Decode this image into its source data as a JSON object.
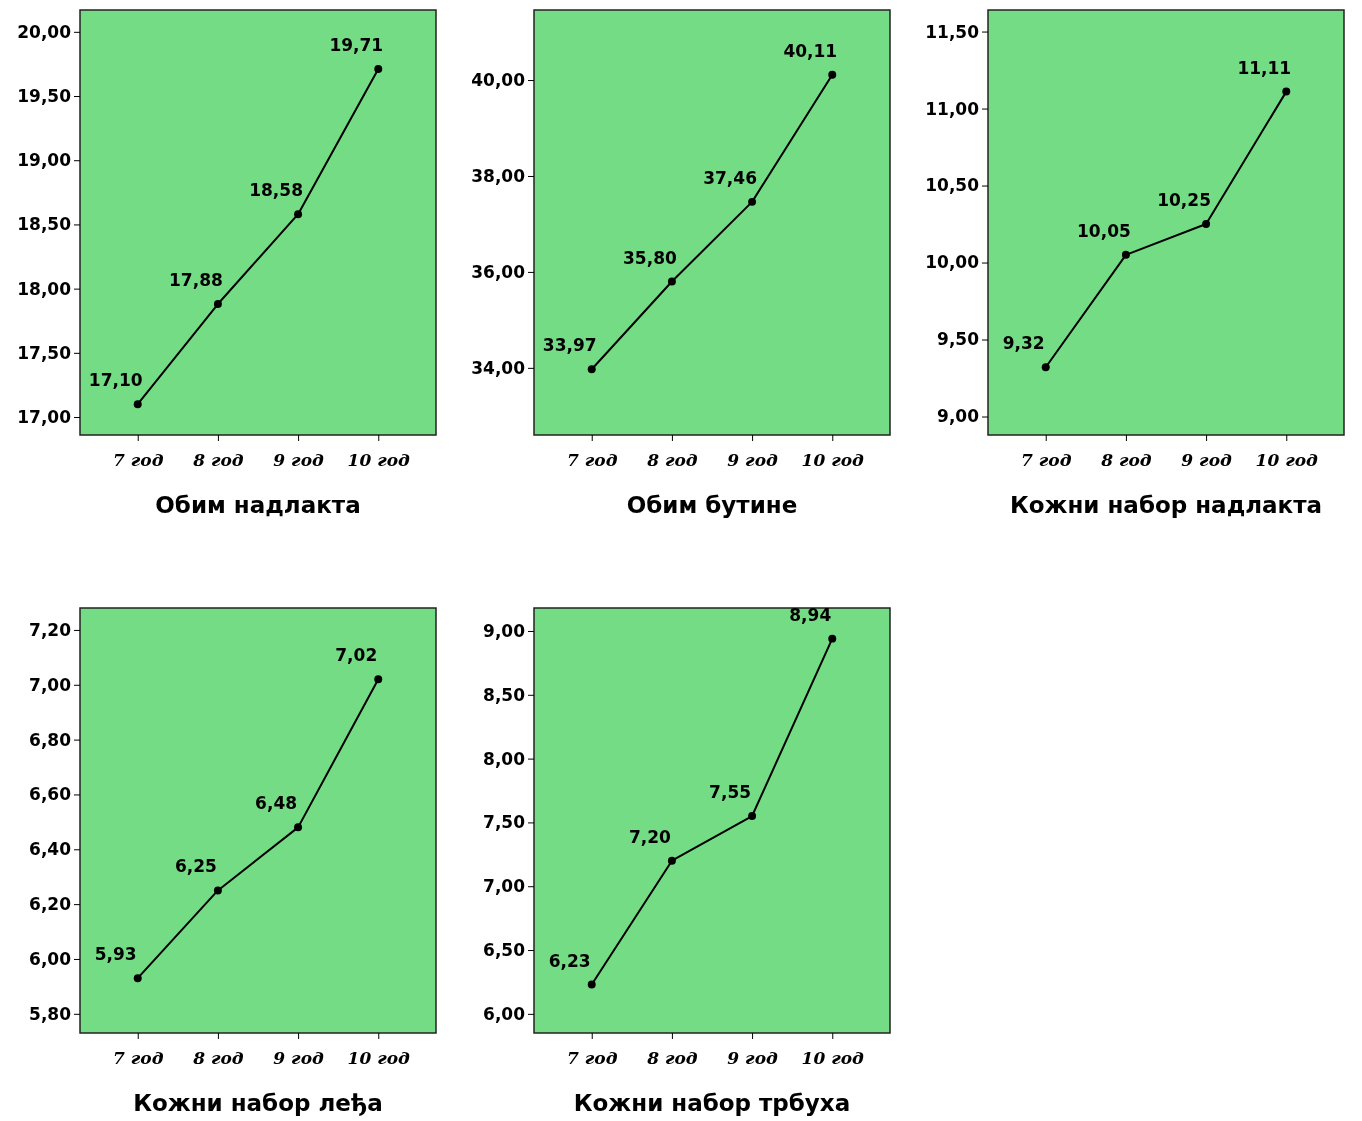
{
  "chart_data": [
    {
      "type": "line",
      "title": "Обим надлакта",
      "categories": [
        "7 год",
        "8 год",
        "9 год",
        "10 год"
      ],
      "marker": "circle",
      "ylim": [
        16.86,
        20.17
      ],
      "yticks": [
        {
          "value": 17,
          "label": "17,00"
        },
        {
          "value": 17.5,
          "label": "17,50"
        },
        {
          "value": 18,
          "label": "18,00"
        },
        {
          "value": 18.5,
          "label": "18,50"
        },
        {
          "value": 19,
          "label": "19,00"
        },
        {
          "value": 19.5,
          "label": "19,50"
        },
        {
          "value": 20,
          "label": "20,00"
        }
      ],
      "series": [
        {
          "color": "#000000",
          "values": [
            17.1,
            17.88,
            18.58,
            19.71
          ],
          "value_labels": [
            "17,10",
            "17,88",
            "18,58",
            "19,71"
          ]
        }
      ]
    },
    {
      "type": "line",
      "title": "Обим бутине",
      "categories": [
        "7 год",
        "8 год",
        "9 год",
        "10 год"
      ],
      "marker": "circle",
      "ylim": [
        32.6,
        41.46
      ],
      "yticks": [
        {
          "value": 34,
          "label": "34,00"
        },
        {
          "value": 36,
          "label": "36,00"
        },
        {
          "value": 38,
          "label": "38,00"
        },
        {
          "value": 40,
          "label": "40,00"
        }
      ],
      "series": [
        {
          "color": "#000000",
          "values": [
            33.97,
            35.8,
            37.46,
            40.11
          ],
          "value_labels": [
            "33,97",
            "35,80",
            "37,46",
            "40,11"
          ]
        }
      ]
    },
    {
      "type": "line",
      "title": "Кожни набор надлакта",
      "categories": [
        "7 год",
        "8 год",
        "9 год",
        "10 год"
      ],
      "marker": "circle",
      "ylim": [
        8.88,
        11.64
      ],
      "yticks": [
        {
          "value": 9,
          "label": "9,00"
        },
        {
          "value": 9.5,
          "label": "9,50"
        },
        {
          "value": 10,
          "label": "10,00"
        },
        {
          "value": 10.5,
          "label": "10,50"
        },
        {
          "value": 11,
          "label": "11,00"
        },
        {
          "value": 11.5,
          "label": "11,50"
        }
      ],
      "series": [
        {
          "color": "#000000",
          "values": [
            9.32,
            10.05,
            10.25,
            11.11
          ],
          "value_labels": [
            "9,32",
            "10,05",
            "10,25",
            "11,11"
          ]
        }
      ]
    },
    {
      "type": "line",
      "title": "Кожни набор леђа",
      "categories": [
        "7 год",
        "8 год",
        "9 год",
        "10 год"
      ],
      "marker": "circle",
      "ylim": [
        5.73,
        7.28
      ],
      "yticks": [
        {
          "value": 5.8,
          "label": "5,80"
        },
        {
          "value": 6,
          "label": "6,00"
        },
        {
          "value": 6.2,
          "label": "6,20"
        },
        {
          "value": 6.4,
          "label": "6,40"
        },
        {
          "value": 6.6,
          "label": "6,60"
        },
        {
          "value": 6.8,
          "label": "6,80"
        },
        {
          "value": 7,
          "label": "7,00"
        },
        {
          "value": 7.2,
          "label": "7,20"
        }
      ],
      "series": [
        {
          "color": "#000000",
          "values": [
            5.93,
            6.25,
            6.48,
            7.02
          ],
          "value_labels": [
            "5,93",
            "6,25",
            "6,48",
            "7,02"
          ]
        }
      ]
    },
    {
      "type": "line",
      "title": "Кожни набор трбуха",
      "categories": [
        "7 год",
        "8 год",
        "9 год",
        "10 год"
      ],
      "marker": "circle",
      "ylim": [
        5.85,
        9.18
      ],
      "yticks": [
        {
          "value": 6,
          "label": "6,00"
        },
        {
          "value": 6.5,
          "label": "6,50"
        },
        {
          "value": 7,
          "label": "7,00"
        },
        {
          "value": 7.5,
          "label": "7,50"
        },
        {
          "value": 8,
          "label": "8,00"
        },
        {
          "value": 8.5,
          "label": "8,50"
        },
        {
          "value": 9,
          "label": "9,00"
        }
      ],
      "series": [
        {
          "color": "#000000",
          "values": [
            6.23,
            7.2,
            7.55,
            8.94
          ],
          "value_labels": [
            "6,23",
            "7,20",
            "7,55",
            "8,94"
          ]
        }
      ]
    }
  ]
}
